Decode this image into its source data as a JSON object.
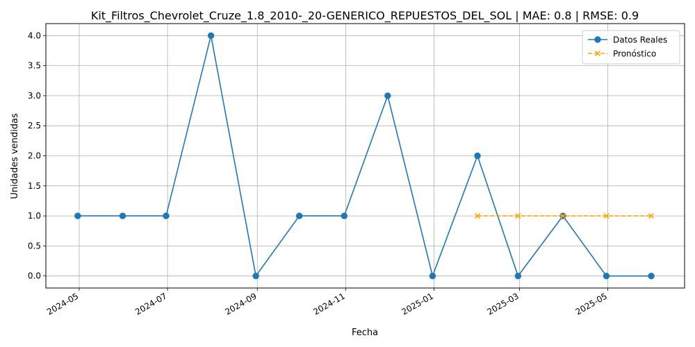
{
  "chart_data": {
    "type": "line",
    "title": "Kit_Filtros_Chevrolet_Cruze_1.8_2010-_20-GENERICO_REPUESTOS_DEL_SOL | MAE: 0.8 | RMSE: 0.9",
    "xlabel": "Fecha",
    "ylabel": "Unidades vendidas",
    "ylim": [
      -0.2,
      4.2
    ],
    "xlim": [
      "2024-04-08",
      "2025-06-23"
    ],
    "grid": true,
    "legend_position": "top-right",
    "x_ticks": [
      "2024-05",
      "2024-07",
      "2024-09",
      "2024-11",
      "2025-01",
      "2025-03",
      "2025-05"
    ],
    "y_ticks": [
      "0.0",
      "0.5",
      "1.0",
      "1.5",
      "2.0",
      "2.5",
      "3.0",
      "3.5",
      "4.0"
    ],
    "series": [
      {
        "name": "Datos Reales",
        "color": "#1f77b4",
        "marker": "circle",
        "line_style": "solid",
        "points": [
          {
            "x": "2024-04-30",
            "y": 1
          },
          {
            "x": "2024-05-31",
            "y": 1
          },
          {
            "x": "2024-06-30",
            "y": 1
          },
          {
            "x": "2024-07-31",
            "y": 4
          },
          {
            "x": "2024-08-31",
            "y": 0
          },
          {
            "x": "2024-09-30",
            "y": 1
          },
          {
            "x": "2024-10-31",
            "y": 1
          },
          {
            "x": "2024-11-30",
            "y": 3
          },
          {
            "x": "2024-12-31",
            "y": 0
          },
          {
            "x": "2025-01-31",
            "y": 2
          },
          {
            "x": "2025-02-28",
            "y": 0
          },
          {
            "x": "2025-03-31",
            "y": 1
          },
          {
            "x": "2025-04-30",
            "y": 0
          },
          {
            "x": "2025-05-31",
            "y": 0
          }
        ]
      },
      {
        "name": "Pronóstico",
        "color": "#ffa500",
        "marker": "x",
        "line_style": "dashed",
        "points": [
          {
            "x": "2025-01-31",
            "y": 1
          },
          {
            "x": "2025-02-28",
            "y": 1
          },
          {
            "x": "2025-03-31",
            "y": 1
          },
          {
            "x": "2025-04-30",
            "y": 1
          },
          {
            "x": "2025-05-31",
            "y": 1
          }
        ]
      }
    ]
  }
}
